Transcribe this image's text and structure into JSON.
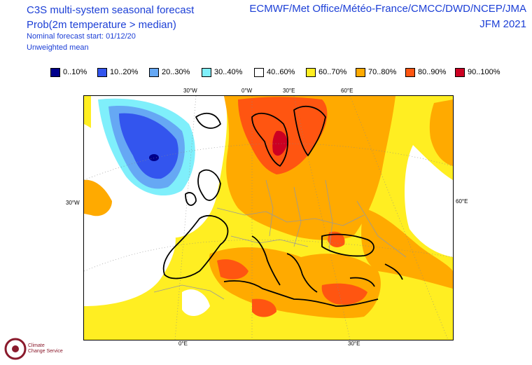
{
  "header": {
    "title": "C3S multi-system seasonal forecast",
    "subtitle": "Prob(2m temperature > median)",
    "start_note": "Nominal forecast start: 01/12/20",
    "mean_note": "Unweighted mean",
    "centres": "ECMWF/Met Office/Météo-France/CMCC/DWD/NCEP/JMA",
    "period": "JFM 2021"
  },
  "legend": [
    {
      "label": "0..10%",
      "color": "#00008b"
    },
    {
      "label": "10..20%",
      "color": "#3355ee"
    },
    {
      "label": "20..30%",
      "color": "#66a8f4"
    },
    {
      "label": "30..40%",
      "color": "#7feffb"
    },
    {
      "label": "40..60%",
      "color": "#ffffff"
    },
    {
      "label": "60..70%",
      "color": "#ffee22"
    },
    {
      "label": "70..80%",
      "color": "#ffaa00"
    },
    {
      "label": "80..90%",
      "color": "#ff5511"
    },
    {
      "label": "90..100%",
      "color": "#cc0022"
    }
  ],
  "grid_labels": {
    "top": [
      "30°W",
      "0°W",
      "30°E",
      "60°E"
    ],
    "left": "30°W",
    "right": "60°E",
    "bottom": [
      "0°E",
      "30°E"
    ]
  },
  "logo": {
    "line1": "Climate",
    "line2": "Change Service"
  }
}
